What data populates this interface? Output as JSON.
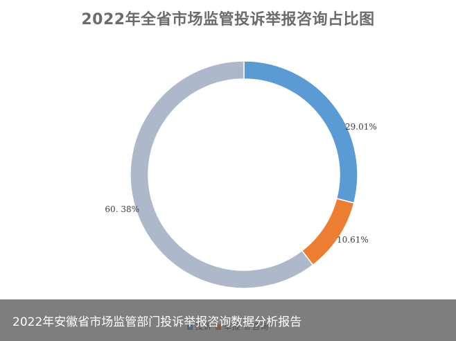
{
  "chart_data": {
    "type": "pie",
    "title": "2022年全省市场监管投诉举报咨询占比图",
    "categories": [
      "投诉",
      "举报",
      "咨询"
    ],
    "values": [
      29.01,
      10.61,
      60.38
    ],
    "value_labels": [
      "29.01%",
      "10.61%",
      "60. 38%"
    ],
    "colors": [
      "#5B9BD5",
      "#ED7D31",
      "#ADB9CA"
    ],
    "legend_position": "bottom"
  },
  "caption": {
    "text": "2022年安徽省市场监管部门投诉举报咨询数据分析报告"
  }
}
